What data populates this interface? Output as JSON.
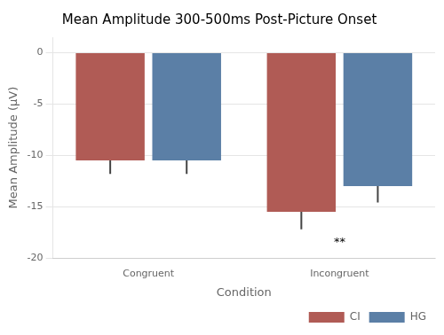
{
  "chart_data": {
    "type": "bar",
    "title": "Mean Amplitude 300-500ms Post-Picture Onset",
    "xlabel": "Condition",
    "ylabel": "Mean Amplitude (μV)",
    "categories": [
      "Congruent",
      "Incongruent"
    ],
    "series": [
      {
        "name": "CI",
        "color": "#b05b55",
        "values": [
          -10.5,
          -15.5
        ],
        "errors": [
          1.3,
          1.7
        ]
      },
      {
        "name": "HG",
        "color": "#5b7fa6",
        "values": [
          -10.5,
          -13.0
        ],
        "errors": [
          1.3,
          1.6
        ]
      }
    ],
    "annotations": [
      {
        "text": "**",
        "x": "Incongruent",
        "y": -18.5
      }
    ],
    "ylim": [
      -20,
      1.5
    ],
    "yticks": [
      0,
      -5,
      -10,
      -15,
      -20
    ],
    "grid": true,
    "legend": "lower right"
  }
}
